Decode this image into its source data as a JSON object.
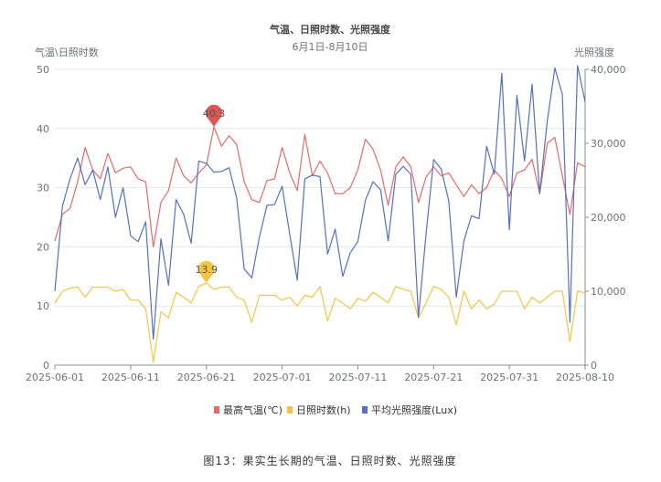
{
  "chart_data": {
    "type": "line",
    "title": "气温、日照时数、光照强度",
    "subtitle": "6月1日-8月10日",
    "y_left_name": "气温\\日照时数",
    "y_right_name": "光照强度",
    "y_left_ticks": [
      "0",
      "10",
      "20",
      "30",
      "40",
      "50"
    ],
    "y_right_ticks": [
      "0",
      "10,000",
      "20,000",
      "30,000",
      "40,000"
    ],
    "ylim_left": [
      0,
      50
    ],
    "ylim_right": [
      0,
      40000
    ],
    "x_ticks": [
      "2025-06-01",
      "2025-06-11",
      "2025-06-21",
      "2025-07-01",
      "2025-07-11",
      "2025-07-21",
      "2025-07-31",
      "2025-08-10"
    ],
    "x_start": "2025-06-01",
    "x_end": "2025-08-10",
    "grid": true,
    "legend_position": "bottom",
    "series": [
      {
        "name": "最高气温(℃)",
        "axis": "left",
        "color": "#e8696b",
        "values": [
          21,
          25.5,
          26.5,
          31,
          36.8,
          33,
          31.5,
          35.8,
          32.5,
          33.3,
          33.5,
          31.5,
          31,
          20,
          27.5,
          29.5,
          35,
          32,
          30.8,
          32.5,
          33.8,
          40.3,
          37,
          38.8,
          37.3,
          31,
          28,
          27.5,
          31.2,
          31.5,
          36.8,
          32.5,
          29.5,
          39,
          32,
          34.5,
          32.5,
          29,
          29,
          30,
          33,
          38.2,
          36.5,
          33,
          27,
          33.5,
          35.2,
          33.5,
          27.5,
          31.8,
          33.5,
          32,
          32.5,
          30.5,
          28.5,
          30.5,
          29,
          30,
          33,
          31.5,
          28.5,
          32.5,
          33,
          34.8,
          29,
          37.5,
          38.5,
          32,
          25.5,
          34.2,
          33.5
        ]
      },
      {
        "name": "日照时数(h)",
        "axis": "left",
        "color": "#f5c542",
        "values": [
          10.5,
          12.5,
          13,
          13.2,
          11.5,
          13.2,
          13.2,
          13.2,
          12.5,
          12.8,
          11,
          11,
          9.5,
          0.5,
          9,
          8,
          12.3,
          11.5,
          10.5,
          13.3,
          13.9,
          12.8,
          13.2,
          13.2,
          11.5,
          11,
          7.2,
          11.8,
          11.8,
          11.8,
          11,
          11.5,
          10,
          11.8,
          11.5,
          13.3,
          7.5,
          11.3,
          10.5,
          9.5,
          11.3,
          10.8,
          12.3,
          11.5,
          10.5,
          13.3,
          12.8,
          12.5,
          8,
          10.5,
          13.3,
          12.8,
          11.5,
          6.8,
          12.5,
          9.5,
          11,
          9.5,
          10.3,
          12.5,
          12.5,
          12.5,
          9.5,
          11.5,
          10.5,
          11.5,
          12.5,
          12.5,
          4,
          12.5,
          12.2
        ]
      },
      {
        "name": "平均光照强度(Lux)",
        "axis": "right",
        "color": "#5470c6",
        "values": [
          10000,
          21500,
          25200,
          28000,
          24400,
          26400,
          22400,
          26800,
          20000,
          24000,
          17500,
          16700,
          19400,
          3500,
          17100,
          10800,
          22400,
          20400,
          16500,
          27600,
          27300,
          26100,
          26200,
          26700,
          22600,
          13000,
          11800,
          17300,
          21600,
          21700,
          24200,
          17700,
          11500,
          25200,
          25700,
          25500,
          15000,
          18400,
          12000,
          15200,
          16700,
          22300,
          24800,
          23700,
          16800,
          25800,
          26900,
          25800,
          6500,
          17700,
          27800,
          26500,
          22200,
          9200,
          16800,
          20200,
          19800,
          29600,
          25800,
          39500,
          18300,
          36500,
          27600,
          38000,
          23200,
          33000,
          40200,
          36600,
          5800,
          40500,
          35600
        ]
      }
    ],
    "annotations": [
      {
        "series": 0,
        "index": 21,
        "label": "40.3",
        "color": "#e05555"
      },
      {
        "series": 1,
        "index": 20,
        "label": "13.9",
        "color": "#f5c542"
      }
    ]
  },
  "caption": "图13：果实生长期的气温、日照时数、光照强度"
}
